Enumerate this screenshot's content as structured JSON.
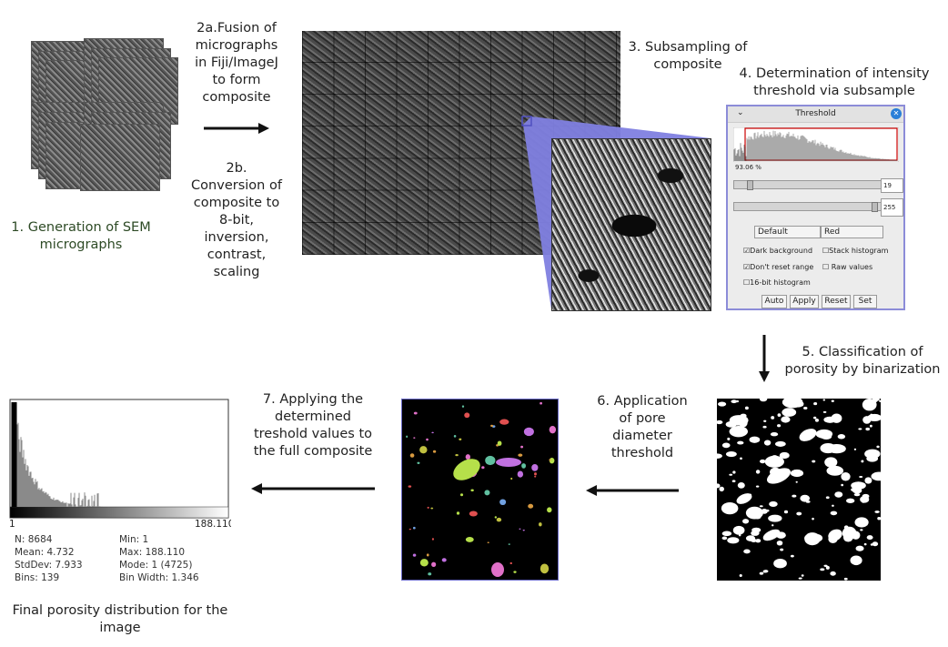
{
  "steps": {
    "step1": "1.  Generation of SEM micrographs",
    "step2a": "2a.Fusion of micrographs in Fiji/ImageJ to form composite",
    "step2b": "2b. Conversion of composite to 8-bit, inversion, contrast, scaling",
    "step3": "3. Subsampling of composite",
    "step4": "4. Determination of intensity threshold via subsample",
    "step5": "5. Classification of porosity by binarization",
    "step6": "6. Application of pore diameter threshold",
    "step7": "7. Applying the determined treshold values to the full composite",
    "final": "Final porosity distribution for the image"
  },
  "threshold_dialog": {
    "title": "Threshold",
    "percent": "93.06 %",
    "min_value": "19",
    "max_value": "255",
    "method": "Default",
    "display": "Red",
    "dark_background": "Dark background",
    "stack_histogram": "Stack histogram",
    "dont_reset_range": "Don't reset range",
    "raw_values": "Raw values",
    "sixteen_bit_histogram": "16-bit histogram",
    "buttons": [
      "Auto",
      "Apply",
      "Reset",
      "Set"
    ]
  },
  "histogram": {
    "axis_min": "1",
    "axis_max": "188.110",
    "stats_left": [
      "N: 8684",
      "Mean: 4.732",
      "StdDev: 7.933",
      "Bins: 139"
    ],
    "stats_right": [
      "Min: 1",
      "Max: 188.110",
      "Mode: 1 (4725)",
      "Bin Width: 1.346"
    ]
  },
  "colors": {
    "accent": "#8080e0",
    "arrow": "#111111",
    "threshold_box": "#cc0000",
    "green_text": "#2d4a25"
  }
}
